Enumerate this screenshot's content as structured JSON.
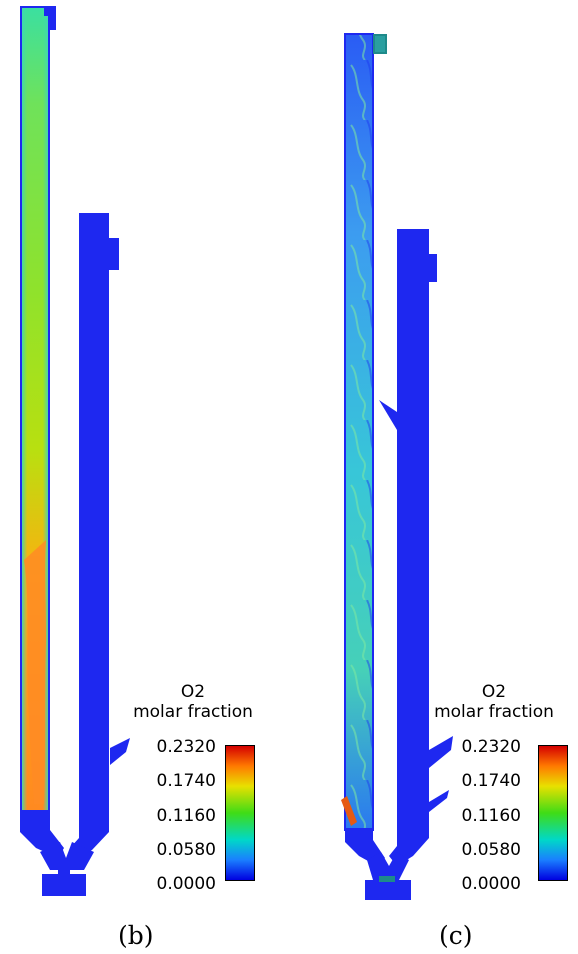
{
  "panels": [
    {
      "caption": "(b)",
      "legend": {
        "title_line1": "O2",
        "title_line2": "molar fraction",
        "ticks": [
          "0.2320",
          "0.1740",
          "0.1160",
          "0.0580",
          "0.0000"
        ]
      }
    },
    {
      "caption": "(c)",
      "legend": {
        "title_line1": "O2",
        "title_line2": "molar fraction",
        "ticks": [
          "0.2320",
          "0.1740",
          "0.1160",
          "0.0580",
          "0.0000"
        ]
      }
    }
  ],
  "colors": {
    "colormap": [
      "#0000e0",
      "#1a7fff",
      "#00d8c8",
      "#3fdc16",
      "#e8e000",
      "#ff7a00",
      "#d40000"
    ],
    "reactor_blue": "#1e28f0"
  }
}
